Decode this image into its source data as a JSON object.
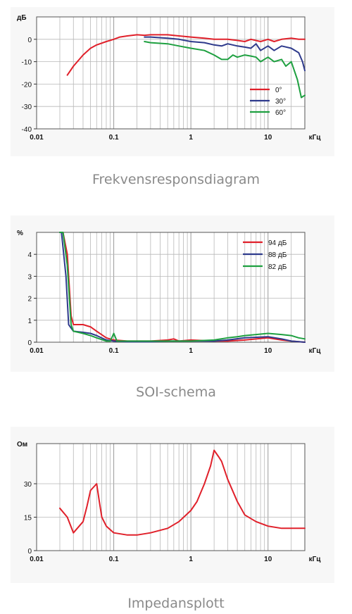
{
  "charts": [
    {
      "caption": "Frekvensresponsdiagram",
      "unit_y": "дБ",
      "unit_x": "кГц"
    },
    {
      "caption": "SOI-schema",
      "unit_y": "%",
      "unit_x": "кГц"
    },
    {
      "caption": "Impedansplott",
      "unit_y": "Ом",
      "unit_x": "кГц"
    }
  ],
  "chart_data": [
    {
      "type": "line",
      "title": "",
      "xlabel": "кГц",
      "ylabel": "дБ",
      "x_scale": "log",
      "xlim": [
        0.01,
        30
      ],
      "ylim": [
        -40,
        10
      ],
      "x_ticks": [
        "0.01",
        "0.1",
        "1",
        "10"
      ],
      "y_ticks": [
        "0",
        "-10",
        "-20",
        "-30",
        "-40"
      ],
      "legend_position": "bottom-right",
      "grid": true,
      "series": [
        {
          "name": "0°",
          "color": "#e0202a",
          "x": [
            0.025,
            0.03,
            0.04,
            0.05,
            0.06,
            0.08,
            0.1,
            0.12,
            0.15,
            0.2,
            0.25,
            0.3,
            0.5,
            0.7,
            1,
            1.5,
            2,
            3,
            4,
            5,
            6,
            8,
            10,
            12,
            15,
            20,
            25,
            30
          ],
          "y": [
            -16,
            -12,
            -7,
            -4,
            -2.5,
            -1,
            0,
            1,
            1.5,
            2,
            1.8,
            2,
            2,
            1.5,
            1,
            0.5,
            0,
            0,
            -0.5,
            -1,
            0,
            -1,
            0,
            -1,
            0,
            0.5,
            0,
            0
          ]
        },
        {
          "name": "30°",
          "color": "#2e3a8c",
          "x": [
            0.25,
            0.3,
            0.5,
            0.7,
            1,
            1.5,
            2,
            2.5,
            3,
            4,
            5,
            6,
            7,
            8,
            10,
            12,
            15,
            20,
            25,
            28,
            30
          ],
          "y": [
            1,
            1,
            0.5,
            0,
            -1,
            -1.5,
            -2.5,
            -3,
            -2,
            -3,
            -3.5,
            -4,
            -2,
            -5,
            -3,
            -5,
            -3,
            -4,
            -6,
            -10,
            -14
          ]
        },
        {
          "name": "60°",
          "color": "#1ea040",
          "x": [
            0.25,
            0.3,
            0.5,
            0.7,
            1,
            1.5,
            2,
            2.5,
            3,
            3.5,
            4,
            5,
            6,
            7,
            8,
            10,
            12,
            15,
            17,
            20,
            24,
            27,
            30
          ],
          "y": [
            -1,
            -1.5,
            -2,
            -3,
            -4,
            -5,
            -7,
            -9,
            -9,
            -7,
            -8,
            -7,
            -7.5,
            -8,
            -10,
            -8,
            -10,
            -9,
            -12,
            -10,
            -18,
            -26,
            -25
          ]
        }
      ]
    },
    {
      "type": "line",
      "title": "",
      "xlabel": "кГц",
      "ylabel": "%",
      "x_scale": "log",
      "xlim": [
        0.01,
        30
      ],
      "ylim": [
        0,
        5
      ],
      "x_ticks": [
        "0.01",
        "0.1",
        "1",
        "10"
      ],
      "y_ticks": [
        "0",
        "1",
        "2",
        "3",
        "4"
      ],
      "legend_position": "top-right",
      "grid": true,
      "series": [
        {
          "name": "94 дБ",
          "color": "#e0202a",
          "x": [
            0.02,
            0.022,
            0.025,
            0.028,
            0.03,
            0.04,
            0.05,
            0.06,
            0.08,
            0.1,
            0.15,
            0.2,
            0.3,
            0.5,
            0.6,
            0.7,
            1,
            2,
            3,
            5,
            10,
            15,
            20,
            30
          ],
          "y": [
            5,
            5,
            4,
            1.2,
            0.8,
            0.8,
            0.7,
            0.5,
            0.2,
            0.1,
            0.05,
            0.05,
            0.05,
            0.1,
            0.15,
            0.05,
            0.1,
            0.05,
            0.05,
            0.1,
            0.2,
            0.1,
            0.05,
            0
          ]
        },
        {
          "name": "88 дБ",
          "color": "#2e3a8c",
          "x": [
            0.02,
            0.021,
            0.024,
            0.026,
            0.03,
            0.04,
            0.05,
            0.06,
            0.08,
            0.1,
            0.15,
            0.2,
            0.3,
            0.5,
            1,
            2,
            3,
            5,
            10,
            15,
            20,
            30
          ],
          "y": [
            5,
            5,
            3,
            0.8,
            0.5,
            0.45,
            0.4,
            0.3,
            0.1,
            0.05,
            0.02,
            0.02,
            0.02,
            0.05,
            0.05,
            0.05,
            0.1,
            0.2,
            0.25,
            0.15,
            0.05,
            0
          ]
        },
        {
          "name": "82 дБ",
          "color": "#1ea040",
          "x": [
            0.02,
            0.022,
            0.025,
            0.028,
            0.03,
            0.04,
            0.05,
            0.06,
            0.08,
            0.09,
            0.1,
            0.11,
            0.15,
            0.2,
            0.3,
            0.5,
            1,
            2,
            3,
            4,
            5,
            7,
            10,
            15,
            20,
            25,
            30
          ],
          "y": [
            5,
            5,
            3.5,
            0.8,
            0.5,
            0.4,
            0.3,
            0.2,
            0.05,
            0.05,
            0.4,
            0.05,
            0.05,
            0.05,
            0.05,
            0.05,
            0.05,
            0.1,
            0.2,
            0.25,
            0.3,
            0.35,
            0.4,
            0.35,
            0.3,
            0.2,
            0.15
          ]
        }
      ]
    },
    {
      "type": "line",
      "title": "",
      "xlabel": "кГц",
      "ylabel": "Ом",
      "x_scale": "log",
      "xlim": [
        0.01,
        30
      ],
      "ylim": [
        0,
        48
      ],
      "x_ticks": [
        "0.01",
        "0.1",
        "1",
        "10"
      ],
      "y_ticks": [
        "0",
        "15",
        "30"
      ],
      "grid": true,
      "series": [
        {
          "name": "",
          "color": "#e0202a",
          "x": [
            0.02,
            0.025,
            0.03,
            0.04,
            0.045,
            0.05,
            0.06,
            0.065,
            0.07,
            0.08,
            0.1,
            0.15,
            0.2,
            0.3,
            0.5,
            0.7,
            1,
            1.2,
            1.5,
            1.8,
            2,
            2.3,
            2.5,
            3,
            4,
            5,
            7,
            10,
            15,
            20,
            30
          ],
          "y": [
            19,
            15,
            8,
            13,
            20,
            27,
            30,
            22,
            15,
            11,
            8,
            7,
            7,
            8,
            10,
            13,
            18,
            22,
            30,
            38,
            45,
            42,
            40,
            32,
            22,
            16,
            13,
            11,
            10,
            10,
            10
          ]
        }
      ]
    }
  ]
}
